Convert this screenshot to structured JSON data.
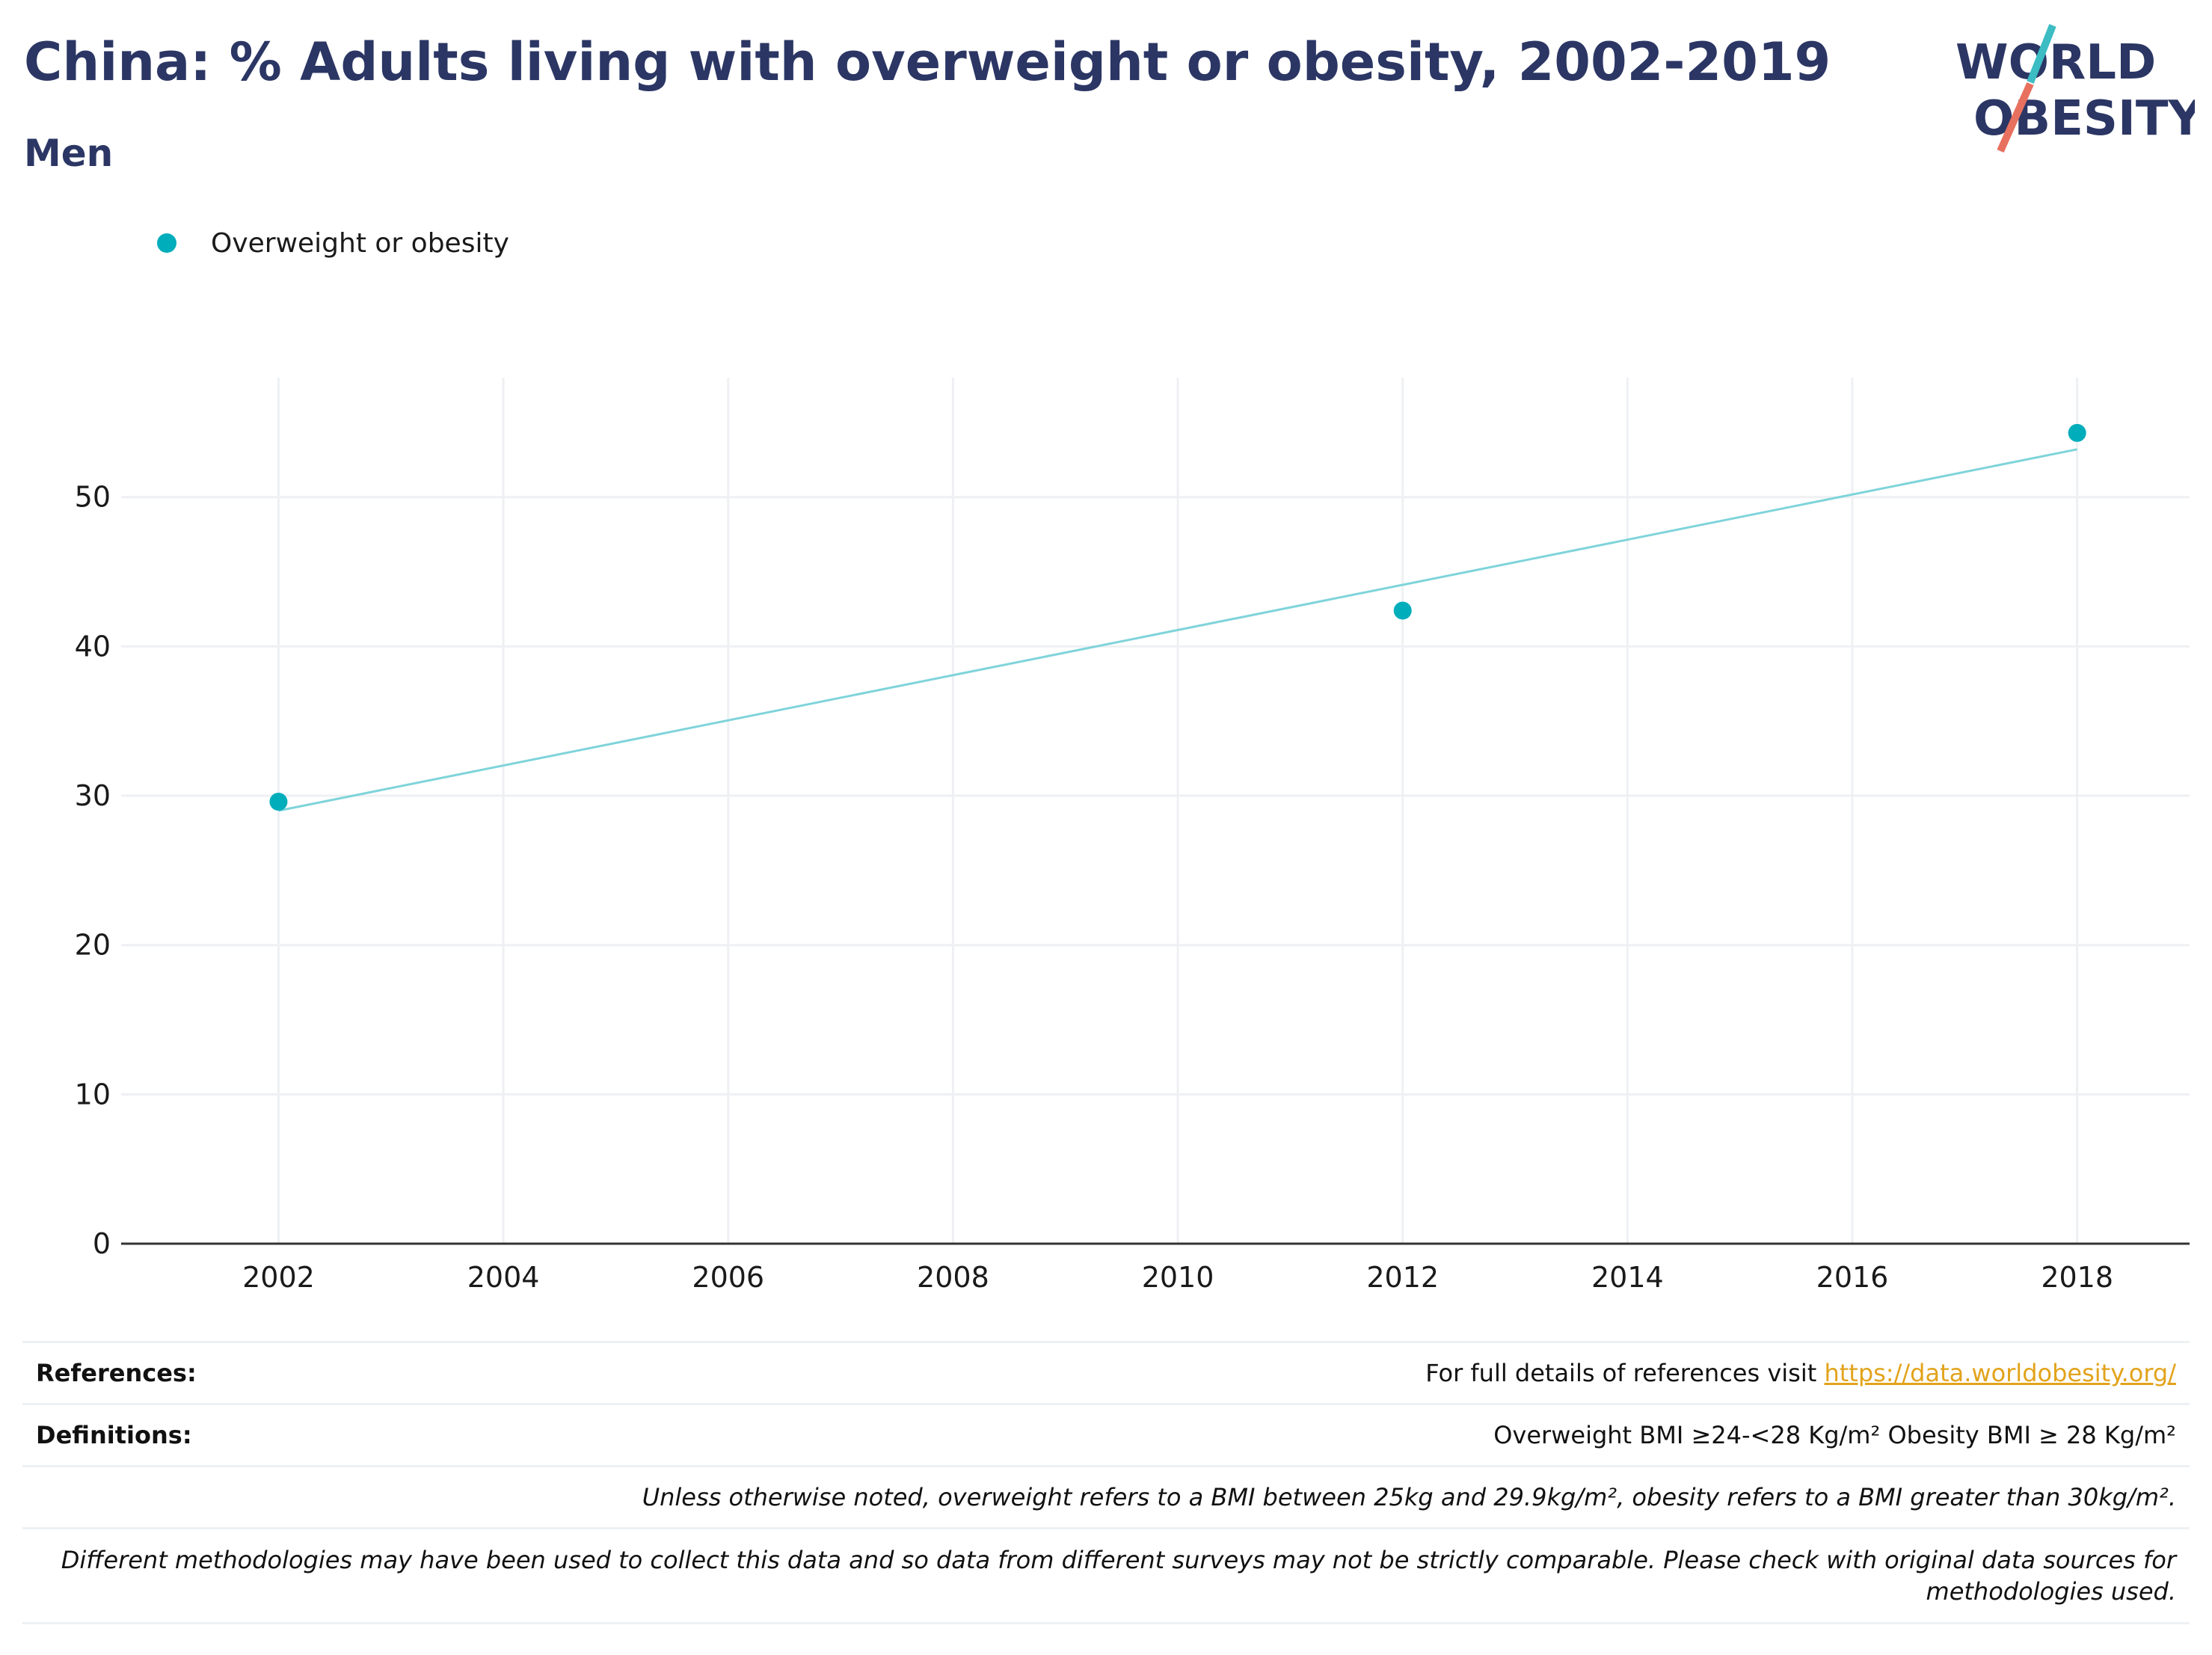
{
  "header": {
    "title": "China: % Adults living with overweight or obesity, 2002-2019",
    "subtitle": "Men"
  },
  "logo": {
    "line1": "WORLD",
    "line2": "OBESITY"
  },
  "colors": {
    "title": "#2b3664",
    "series": "#00adbb",
    "trend": "#7fd4da",
    "grid": "#eef0f3",
    "link": "#e2a31b",
    "logo_teal": "#3cbcc3",
    "logo_coral": "#e8705f"
  },
  "chart_data": {
    "type": "scatter",
    "legend_position": "top-left",
    "grid": true,
    "xlim": [
      2000.6,
      2019.0
    ],
    "ylim": [
      0,
      58
    ],
    "x_ticks": [
      2002,
      2004,
      2006,
      2008,
      2010,
      2012,
      2014,
      2016,
      2018
    ],
    "y_ticks": [
      0,
      10,
      20,
      30,
      40,
      50
    ],
    "series": [
      {
        "name": "Overweight or obesity",
        "points": [
          {
            "x": 2002,
            "y": 29.6
          },
          {
            "x": 2012,
            "y": 42.4
          },
          {
            "x": 2018,
            "y": 54.3
          }
        ]
      }
    ],
    "trendline": {
      "x": [
        2002,
        2018
      ],
      "y": [
        29.0,
        53.2
      ]
    }
  },
  "footer": {
    "references_label": "References:",
    "references_text": "For full details of references visit ",
    "references_link": "https://data.worldobesity.org/",
    "definitions_label": "Definitions:",
    "definitions_text": "Overweight BMI ≥24-<28 Kg/m² Obesity BMI ≥ 28 Kg/m²",
    "note1": "Unless otherwise noted, overweight refers to a BMI between 25kg and 29.9kg/m², obesity refers to a BMI greater than 30kg/m².",
    "note2_line1": "Different methodologies may have been used to collect this data and so data from different surveys may not be strictly comparable. Please check with original data sources for",
    "note2_line2": "methodologies used."
  }
}
